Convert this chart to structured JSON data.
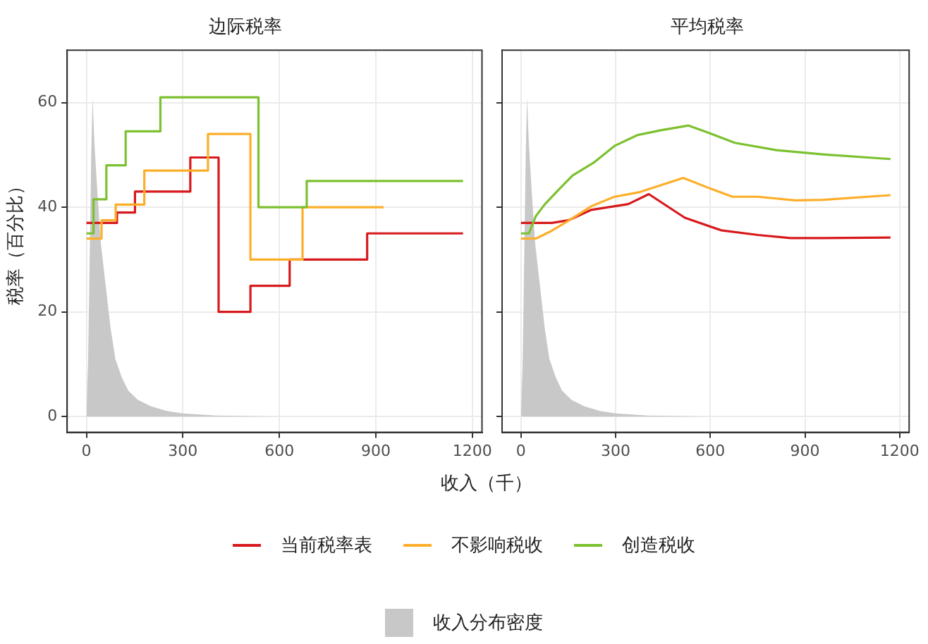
{
  "chart_data": [
    {
      "type": "step",
      "title": "边际税率",
      "xlabel": "收入（千）",
      "ylabel": "税率（百分比）",
      "xlim": [
        -60,
        1230
      ],
      "ylim": [
        -3,
        70
      ],
      "xticks": [
        0,
        300,
        600,
        900,
        1200
      ],
      "yticks": [
        0,
        20,
        40,
        60
      ],
      "grid": true,
      "legend": "bottom",
      "series": [
        {
          "name": "收入分布密度",
          "type": "area",
          "color": "#c8c8c8",
          "x": [
            0,
            5,
            10,
            15,
            19,
            25,
            35,
            45,
            60,
            75,
            90,
            110,
            130,
            160,
            200,
            250,
            300,
            400,
            500,
            590
          ],
          "values": [
            0,
            10,
            30,
            50,
            61,
            52,
            42,
            33,
            25,
            17,
            11,
            7.5,
            5,
            3.2,
            2,
            1.1,
            0.6,
            0.2,
            0.1,
            0
          ]
        },
        {
          "name": "当前税率表",
          "color": "#d7191c",
          "x": [
            0,
            95,
            151,
            323,
            411,
            510,
            632,
            873,
            1171
          ],
          "values": [
            37,
            39,
            43,
            49.5,
            20,
            25,
            30,
            35,
            35
          ]
        },
        {
          "name": "不影响税收",
          "color": "#fdae29",
          "x": [
            0,
            47,
            91,
            180,
            378,
            510,
            672,
            924
          ],
          "values": [
            34,
            37.5,
            40.5,
            47,
            54,
            30,
            40,
            40
          ]
        },
        {
          "name": "创造税收",
          "color": "#7cc12f",
          "x": [
            0,
            22,
            62,
            122,
            230,
            535,
            685,
            1171
          ],
          "values": [
            35,
            41.5,
            48,
            54.5,
            61,
            40,
            45,
            45
          ]
        }
      ]
    },
    {
      "type": "line",
      "title": "平均税率",
      "xlim": [
        -60,
        1230
      ],
      "ylim": [
        -3,
        70
      ],
      "xticks": [
        0,
        300,
        600,
        900,
        1200
      ],
      "yticks": [
        0,
        20,
        40,
        60
      ],
      "grid": true,
      "tick_labels": "x",
      "series": [
        {
          "type": "area",
          "color": "#c8c8c8",
          "x": [
            0,
            5,
            10,
            15,
            19,
            25,
            35,
            45,
            60,
            75,
            90,
            110,
            130,
            160,
            200,
            250,
            300,
            400,
            500,
            590
          ],
          "values": [
            0,
            10,
            30,
            50,
            61,
            52,
            42,
            33,
            25,
            17,
            11,
            7.5,
            5,
            3.2,
            2,
            1.1,
            0.6,
            0.2,
            0.1,
            0
          ]
        },
        {
          "color": "#d7191c",
          "x": [
            0,
            98,
            150,
            223,
            340,
            405,
            519,
            634,
            751,
            854,
            957,
            1171
          ],
          "values": [
            37,
            37,
            37.5,
            39.5,
            40.6,
            42.5,
            38,
            35.6,
            34.7,
            34.1,
            34.1,
            34.2
          ]
        },
        {
          "color": "#fdae29",
          "x": [
            0,
            47,
            91,
            150,
            223,
            296,
            377,
            514,
            590,
            670,
            751,
            869,
            957,
            1171
          ],
          "values": [
            34,
            34,
            35.3,
            37.4,
            40.2,
            42,
            42.9,
            45.6,
            43.8,
            42,
            42,
            41.3,
            41.4,
            42.3
          ]
        },
        {
          "color": "#7cc12f",
          "x": [
            0,
            25,
            47,
            76,
            120,
            164,
            230,
            296,
            370,
            443,
            531,
            590,
            678,
            810,
            957,
            1171
          ],
          "values": [
            35,
            35,
            38.3,
            40.6,
            43.4,
            46.1,
            48.5,
            51.7,
            53.8,
            54.7,
            55.6,
            54.3,
            52.3,
            50.9,
            50.1,
            49.2
          ]
        }
      ]
    }
  ]
}
